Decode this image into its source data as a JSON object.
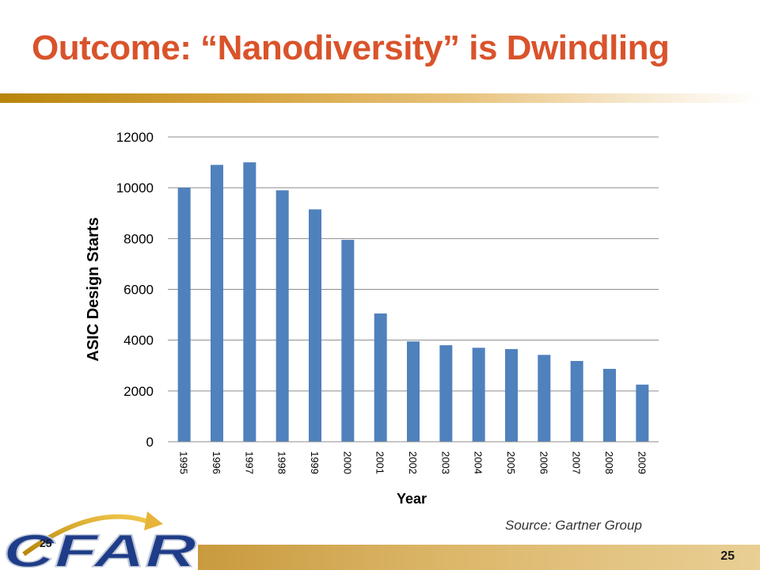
{
  "slide": {
    "title": "Outcome: “Nanodiversity” is Dwindling",
    "source": "Source: Gartner Group",
    "slide_number": "25",
    "logo_text": "CFAR"
  },
  "colors": {
    "title": "#d9532b",
    "bar": "#4f81bd",
    "accent": "#d4a23c",
    "logo_blue": "#1f3c88"
  },
  "chart_data": {
    "type": "bar",
    "title": "",
    "xlabel": "Year",
    "ylabel": "ASIC Design Starts",
    "categories": [
      "1995",
      "1996",
      "1997",
      "1998",
      "1999",
      "2000",
      "2001",
      "2002",
      "2003",
      "2004",
      "2005",
      "2006",
      "2007",
      "2008",
      "2009"
    ],
    "values": [
      10000,
      10900,
      11000,
      9900,
      9150,
      7950,
      5050,
      3950,
      3800,
      3700,
      3650,
      3420,
      3180,
      2870,
      2250
    ],
    "ylim": [
      0,
      12000
    ],
    "yticks": [
      0,
      2000,
      4000,
      6000,
      8000,
      10000,
      12000
    ],
    "grid": true,
    "legend": "none"
  }
}
